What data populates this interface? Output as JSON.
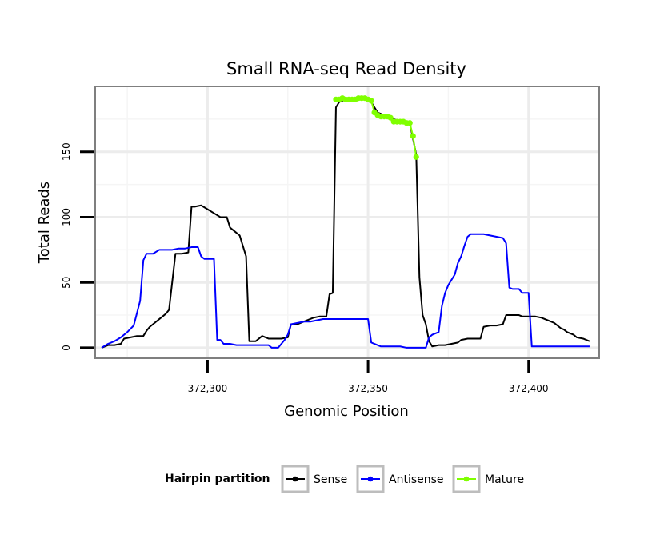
{
  "chart_data": {
    "type": "line",
    "title": "Small RNA-seq Read Density",
    "xlabel": "Genomic Position",
    "ylabel": "Total Reads",
    "xlim": [
      372265,
      372422
    ],
    "ylim": [
      -8,
      200
    ],
    "x_ticks": [
      372300,
      372350,
      372400
    ],
    "x_tick_labels": [
      "372,300",
      "372,350",
      "372,400"
    ],
    "y_ticks": [
      0,
      50,
      100,
      150
    ],
    "y_tick_labels": [
      "0",
      "50",
      "100",
      "150"
    ],
    "grid": true,
    "legend": {
      "title": "Hairpin partition",
      "position": "bottom",
      "entries": [
        {
          "label": "Sense",
          "color": "#000000"
        },
        {
          "label": "Antisense",
          "color": "#0000ff"
        },
        {
          "label": "Mature",
          "color": "#7fff00"
        }
      ]
    },
    "series": [
      {
        "name": "Sense",
        "color": "#000000",
        "points": [
          [
            372267,
            0
          ],
          [
            372269,
            2
          ],
          [
            372271,
            2
          ],
          [
            372273,
            3
          ],
          [
            372274,
            7
          ],
          [
            372276,
            8
          ],
          [
            372278,
            9
          ],
          [
            372280,
            9
          ],
          [
            372281,
            13
          ],
          [
            372282,
            16
          ],
          [
            372284,
            20
          ],
          [
            372285,
            22
          ],
          [
            372287,
            26
          ],
          [
            372288,
            29
          ],
          [
            372290,
            72
          ],
          [
            372292,
            72
          ],
          [
            372294,
            73
          ],
          [
            372295,
            108
          ],
          [
            372296,
            108
          ],
          [
            372298,
            109
          ],
          [
            372300,
            106
          ],
          [
            372302,
            103
          ],
          [
            372304,
            100
          ],
          [
            372306,
            100
          ],
          [
            372307,
            92
          ],
          [
            372308,
            90
          ],
          [
            372310,
            86
          ],
          [
            372311,
            78
          ],
          [
            372312,
            70
          ],
          [
            372313,
            5
          ],
          [
            372315,
            5
          ],
          [
            372317,
            9
          ],
          [
            372319,
            7
          ],
          [
            372321,
            7
          ],
          [
            372323,
            7
          ],
          [
            372325,
            8
          ],
          [
            372326,
            18
          ],
          [
            372328,
            18
          ],
          [
            372330,
            20
          ],
          [
            372331,
            21
          ],
          [
            372333,
            23
          ],
          [
            372335,
            24
          ],
          [
            372337,
            24
          ],
          [
            372338,
            41
          ],
          [
            372339,
            42
          ],
          [
            372340,
            184
          ],
          [
            372341,
            188
          ],
          [
            372343,
            190
          ],
          [
            372345,
            190
          ],
          [
            372347,
            190
          ],
          [
            372349,
            190
          ],
          [
            372351,
            188
          ],
          [
            372353,
            180
          ],
          [
            372355,
            178
          ],
          [
            372357,
            176
          ],
          [
            372359,
            174
          ],
          [
            372361,
            174
          ],
          [
            372363,
            172
          ],
          [
            372364,
            160
          ],
          [
            372365,
            148
          ],
          [
            372366,
            54
          ],
          [
            372367,
            25
          ],
          [
            372368,
            18
          ],
          [
            372369,
            5
          ],
          [
            372370,
            1
          ],
          [
            372372,
            2
          ],
          [
            372374,
            2
          ],
          [
            372376,
            3
          ],
          [
            372378,
            4
          ],
          [
            372379,
            6
          ],
          [
            372381,
            7
          ],
          [
            372383,
            7
          ],
          [
            372385,
            7
          ],
          [
            372386,
            16
          ],
          [
            372388,
            17
          ],
          [
            372390,
            17
          ],
          [
            372392,
            18
          ],
          [
            372393,
            25
          ],
          [
            372395,
            25
          ],
          [
            372397,
            25
          ],
          [
            372398,
            24
          ],
          [
            372400,
            24
          ],
          [
            372402,
            24
          ],
          [
            372404,
            23
          ],
          [
            372406,
            21
          ],
          [
            372408,
            19
          ],
          [
            372410,
            15
          ],
          [
            372411,
            14
          ],
          [
            372412,
            12
          ],
          [
            372414,
            10
          ],
          [
            372415,
            8
          ],
          [
            372417,
            7
          ],
          [
            372419,
            5
          ]
        ]
      },
      {
        "name": "Antisense",
        "color": "#0000ff",
        "points": [
          [
            372267,
            0
          ],
          [
            372269,
            3
          ],
          [
            372271,
            5
          ],
          [
            372273,
            8
          ],
          [
            372275,
            12
          ],
          [
            372277,
            17
          ],
          [
            372279,
            36
          ],
          [
            372280,
            67
          ],
          [
            372281,
            72
          ],
          [
            372283,
            72
          ],
          [
            372285,
            75
          ],
          [
            372287,
            75
          ],
          [
            372289,
            75
          ],
          [
            372291,
            76
          ],
          [
            372293,
            76
          ],
          [
            372295,
            77
          ],
          [
            372297,
            77
          ],
          [
            372298,
            70
          ],
          [
            372299,
            68
          ],
          [
            372301,
            68
          ],
          [
            372302,
            68
          ],
          [
            372303,
            6
          ],
          [
            372304,
            6
          ],
          [
            372305,
            3
          ],
          [
            372307,
            3
          ],
          [
            372309,
            2
          ],
          [
            372311,
            2
          ],
          [
            372313,
            2
          ],
          [
            372315,
            2
          ],
          [
            372317,
            2
          ],
          [
            372319,
            2
          ],
          [
            372320,
            0
          ],
          [
            372322,
            0
          ],
          [
            372324,
            6
          ],
          [
            372325,
            10
          ],
          [
            372326,
            18
          ],
          [
            372328,
            19
          ],
          [
            372330,
            20
          ],
          [
            372332,
            20
          ],
          [
            372334,
            21
          ],
          [
            372336,
            22
          ],
          [
            372338,
            22
          ],
          [
            372340,
            22
          ],
          [
            372342,
            22
          ],
          [
            372344,
            22
          ],
          [
            372346,
            22
          ],
          [
            372348,
            22
          ],
          [
            372350,
            22
          ],
          [
            372351,
            4
          ],
          [
            372352,
            3
          ],
          [
            372354,
            1
          ],
          [
            372356,
            1
          ],
          [
            372358,
            1
          ],
          [
            372360,
            1
          ],
          [
            372362,
            0
          ],
          [
            372364,
            0
          ],
          [
            372366,
            0
          ],
          [
            372368,
            0
          ],
          [
            372369,
            8
          ],
          [
            372370,
            10
          ],
          [
            372372,
            12
          ],
          [
            372373,
            32
          ],
          [
            372374,
            42
          ],
          [
            372375,
            48
          ],
          [
            372377,
            56
          ],
          [
            372378,
            65
          ],
          [
            372379,
            70
          ],
          [
            372380,
            78
          ],
          [
            372381,
            85
          ],
          [
            372382,
            87
          ],
          [
            372384,
            87
          ],
          [
            372386,
            87
          ],
          [
            372388,
            86
          ],
          [
            372390,
            85
          ],
          [
            372392,
            84
          ],
          [
            372393,
            80
          ],
          [
            372394,
            46
          ],
          [
            372395,
            45
          ],
          [
            372397,
            45
          ],
          [
            372398,
            42
          ],
          [
            372400,
            42
          ],
          [
            372401,
            1
          ],
          [
            372403,
            1
          ],
          [
            372405,
            1
          ],
          [
            372407,
            1
          ],
          [
            372409,
            1
          ],
          [
            372411,
            1
          ],
          [
            372413,
            1
          ],
          [
            372415,
            1
          ],
          [
            372417,
            1
          ],
          [
            372419,
            1
          ]
        ]
      },
      {
        "name": "Mature",
        "color": "#7fff00",
        "points": [
          [
            372340,
            190
          ],
          [
            372341,
            190
          ],
          [
            372342,
            191
          ],
          [
            372343,
            190
          ],
          [
            372344,
            190
          ],
          [
            372345,
            190
          ],
          [
            372346,
            190
          ],
          [
            372347,
            191
          ],
          [
            372348,
            191
          ],
          [
            372349,
            191
          ],
          [
            372350,
            190
          ],
          [
            372351,
            189
          ],
          [
            372352,
            180
          ],
          [
            372353,
            178
          ],
          [
            372354,
            177
          ],
          [
            372355,
            177
          ],
          [
            372356,
            177
          ],
          [
            372357,
            176
          ],
          [
            372358,
            173
          ],
          [
            372359,
            173
          ],
          [
            372360,
            173
          ],
          [
            372361,
            173
          ],
          [
            372362,
            172
          ],
          [
            372363,
            172
          ],
          [
            372364,
            162
          ],
          [
            372365,
            146
          ]
        ]
      }
    ]
  }
}
